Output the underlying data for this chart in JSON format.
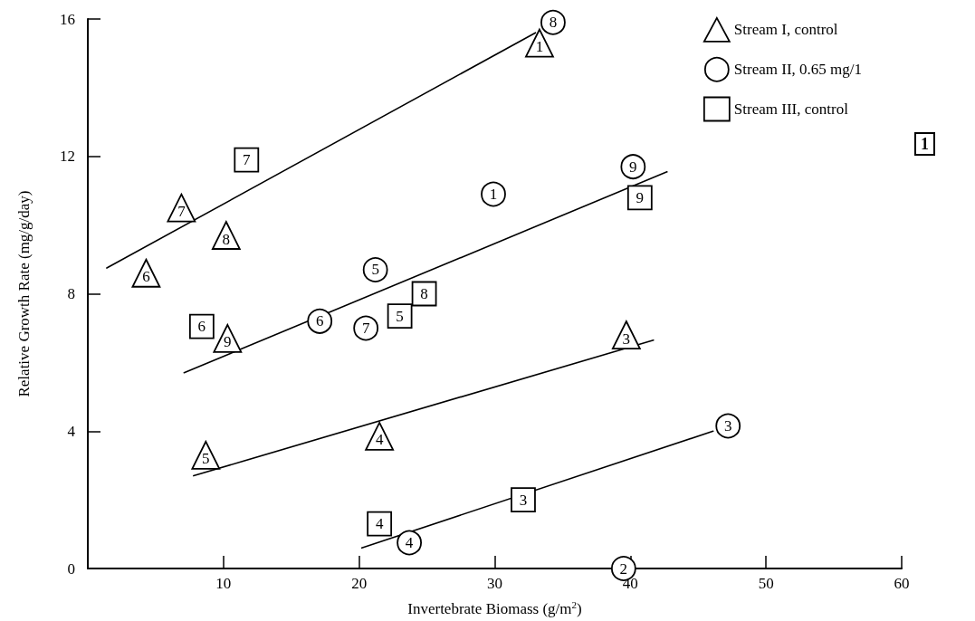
{
  "chart_data": {
    "type": "scatter",
    "xlabel": "Invertebrate Biomass (g/m$^{2}$)",
    "ylabel": "Relative Growth Rate (mg/g/day)",
    "xlim": [
      0,
      60
    ],
    "xticks": [
      10,
      20,
      30,
      40,
      50,
      60
    ],
    "ylim": [
      0,
      16
    ],
    "yticks": [
      0,
      4,
      8,
      12,
      16
    ],
    "grid": false,
    "legend": "top right",
    "annotations": [
      "1",
      {
        "text": "1",
        "x": 33.3,
        "y": 15.3
      },
      {
        "text": "3",
        "x": 39.7,
        "y": 6.8
      },
      {
        "text": "4",
        "x": 21.5,
        "y": 3.85
      },
      {
        "text": "5",
        "x": 8.7,
        "y": 3.3
      },
      {
        "text": "6",
        "x": 4.3,
        "y": 8.6
      },
      {
        "text": "7",
        "x": 6.9,
        "y": 10.5
      },
      {
        "text": "8",
        "x": 10.2,
        "y": 9.7
      },
      {
        "text": "9",
        "x": 10.3,
        "y": 6.7
      },
      {
        "text": "1",
        "x": 29.9,
        "y": 10.9
      },
      {
        "text": "2",
        "x": 39.5,
        "y": 0
      },
      {
        "text": "3",
        "x": 47.2,
        "y": 4.15
      },
      {
        "text": "4",
        "x": 23.7,
        "y": 0.75
      },
      {
        "text": "5",
        "x": 21.2,
        "y": 8.7
      },
      {
        "text": "6",
        "x": 17.1,
        "y": 7.2
      },
      {
        "text": "7",
        "x": 20.5,
        "y": 7.0
      },
      {
        "text": "8",
        "x": 34.3,
        "y": 15.9
      },
      {
        "text": "9",
        "x": 40.2,
        "y": 11.7
      },
      {
        "text": "3",
        "x": 32.1,
        "y": 2.0
      },
      {
        "text": "4",
        "x": 21.5,
        "y": 1.3
      },
      {
        "text": "5",
        "x": 23.0,
        "y": 7.35
      },
      {
        "text": "6",
        "x": 8.4,
        "y": 7.05
      },
      {
        "text": "7",
        "x": 11.7,
        "y": 11.9
      },
      {
        "text": "8",
        "x": 24.8,
        "y": 8.0
      },
      {
        "text": "9",
        "x": 40.7,
        "y": 10.8
      }
    ],
    "series": [
      {
        "name": "Stream I, control",
        "color": "#000000",
        "marker": "triangle",
        "x": [
          33.3,
          39.7,
          21.5,
          8.7,
          4.3,
          6.9,
          10.2,
          10.3
        ],
        "values": [
          15.3,
          6.8,
          3.85,
          3.3,
          8.6,
          10.5,
          9.7,
          6.7
        ]
      },
      {
        "name": "Stream II, 0.65 mg/1",
        "color": "#000000",
        "marker": "circle",
        "x": [
          29.9,
          39.5,
          47.2,
          23.7,
          21.2,
          17.1,
          20.5,
          34.3,
          40.2
        ],
        "values": [
          10.9,
          0,
          4.15,
          0.75,
          8.7,
          7.2,
          7.0,
          15.9,
          11.7
        ]
      },
      {
        "name": "Stream III, control",
        "color": "#000000",
        "marker": "square",
        "x": [
          32.1,
          21.5,
          23.0,
          8.4,
          11.7,
          24.8,
          40.7
        ],
        "values": [
          2.0,
          1.3,
          7.35,
          7.05,
          11.9,
          8.0,
          10.8
        ]
      },
      {
        "type": "line",
        "color": "#000000",
        "marker": "none",
        "x": [
          1.4,
          33.0
        ],
        "values": [
          8.75,
          15.6
        ]
      },
      {
        "type": "line",
        "color": "#000000",
        "marker": "none",
        "x": [
          7.1,
          42.7
        ],
        "values": [
          5.7,
          11.55
        ]
      },
      {
        "type": "line",
        "color": "#000000",
        "marker": "none",
        "x": [
          7.8,
          41.7
        ],
        "values": [
          2.7,
          6.65
        ]
      },
      {
        "type": "line",
        "color": "#000000",
        "marker": "none",
        "x": [
          20.2,
          46.1
        ],
        "values": [
          0.6,
          4.0
        ]
      }
    ]
  }
}
